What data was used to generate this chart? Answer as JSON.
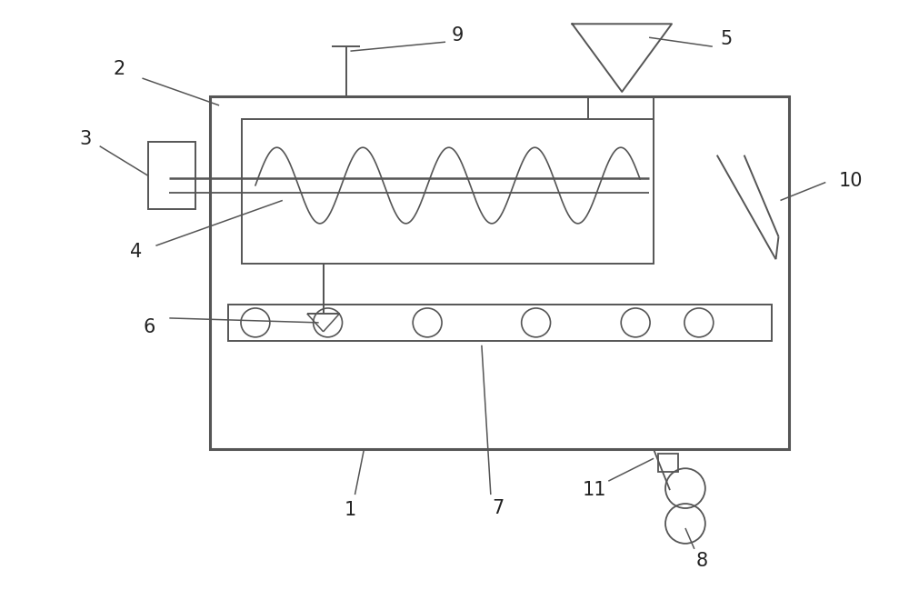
{
  "bg_color": "#ffffff",
  "line_color": "#555555",
  "lw_main": 1.8,
  "lw_inner": 1.4,
  "lw_thin": 1.1,
  "fig_width": 10.0,
  "fig_height": 6.6,
  "dpi": 100
}
